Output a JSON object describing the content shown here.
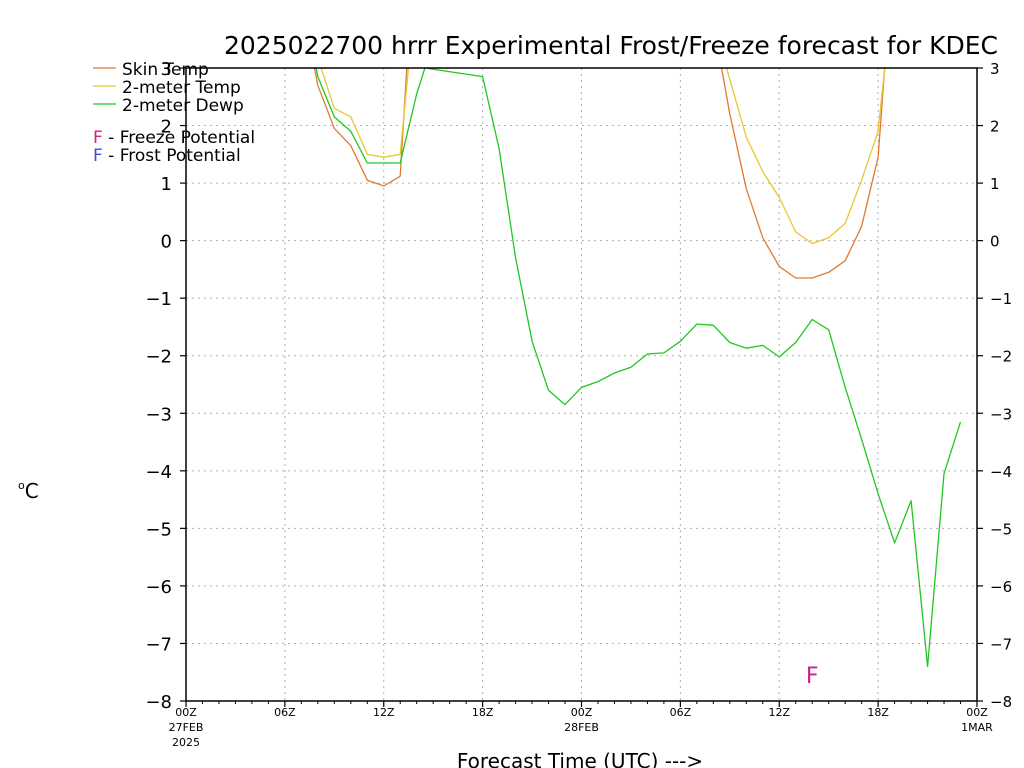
{
  "chart_data": {
    "type": "line",
    "title": "2025022700 hrrr Experimental Frost/Freeze forecast for KDEC",
    "xlabel": "Forecast Time (UTC) --->",
    "ylabel_unit_sup": "o",
    "ylabel_unit": "C",
    "ylim": [
      -8,
      3
    ],
    "xlim": [
      0,
      48
    ],
    "yticks": [
      -8,
      -7,
      -6,
      -5,
      -4,
      -3,
      -2,
      -1,
      0,
      1,
      2,
      3
    ],
    "grid": true,
    "legend_position": "top-left",
    "xticks": [
      {
        "h": 0,
        "label": "00Z",
        "sub1": "27FEB",
        "sub2": "2025"
      },
      {
        "h": 6,
        "label": "06Z",
        "sub1": "",
        "sub2": ""
      },
      {
        "h": 12,
        "label": "12Z",
        "sub1": "",
        "sub2": ""
      },
      {
        "h": 18,
        "label": "18Z",
        "sub1": "",
        "sub2": ""
      },
      {
        "h": 24,
        "label": "00Z",
        "sub1": "28FEB",
        "sub2": ""
      },
      {
        "h": 30,
        "label": "06Z",
        "sub1": "",
        "sub2": ""
      },
      {
        "h": 36,
        "label": "12Z",
        "sub1": "",
        "sub2": ""
      },
      {
        "h": 42,
        "label": "18Z",
        "sub1": "",
        "sub2": ""
      },
      {
        "h": 48,
        "label": "00Z",
        "sub1": "1MAR",
        "sub2": ""
      }
    ],
    "series": [
      {
        "name": "Skin Temp",
        "color": "#e07a30",
        "segments": [
          [
            [
              7.8,
              3.0
            ],
            [
              8,
              2.7
            ],
            [
              9,
              1.95
            ],
            [
              10,
              1.65
            ],
            [
              11,
              1.05
            ],
            [
              12,
              0.95
            ],
            [
              13,
              1.12
            ],
            [
              13.4,
              3.0
            ]
          ],
          [
            [
              32.5,
              3.0
            ],
            [
              33,
              2.2
            ],
            [
              34,
              0.9
            ],
            [
              35,
              0.05
            ],
            [
              36,
              -0.45
            ],
            [
              37,
              -0.65
            ],
            [
              38,
              -0.65
            ],
            [
              39,
              -0.55
            ],
            [
              40,
              -0.35
            ],
            [
              41,
              0.25
            ],
            [
              42,
              1.45
            ],
            [
              42.4,
              3.0
            ]
          ]
        ]
      },
      {
        "name": "2-meter Temp",
        "color": "#e8c830",
        "segments": [
          [
            [
              8.2,
              3.0
            ],
            [
              9,
              2.3
            ],
            [
              10,
              2.15
            ],
            [
              11,
              1.5
            ],
            [
              12,
              1.45
            ],
            [
              13,
              1.5
            ],
            [
              13.5,
              3.0
            ]
          ],
          [
            [
              32.8,
              3.0
            ],
            [
              34,
              1.8
            ],
            [
              35,
              1.2
            ],
            [
              36,
              0.75
            ],
            [
              37,
              0.15
            ],
            [
              38,
              -0.05
            ],
            [
              39,
              0.05
            ],
            [
              40,
              0.3
            ],
            [
              41,
              1.05
            ],
            [
              42,
              1.9
            ],
            [
              42.4,
              3.0
            ]
          ]
        ]
      },
      {
        "name": "2-meter Dewp",
        "color": "#20c820",
        "segments": [
          [
            [
              7.9,
              3.0
            ],
            [
              8,
              2.85
            ],
            [
              9,
              2.15
            ],
            [
              10,
              1.9
            ],
            [
              11,
              1.35
            ],
            [
              12,
              1.35
            ],
            [
              13,
              1.35
            ],
            [
              14,
              2.55
            ],
            [
              14.5,
              3.0
            ],
            [
              18,
              2.85
            ],
            [
              19,
              1.6
            ],
            [
              20,
              -0.3
            ],
            [
              21,
              -1.75
            ],
            [
              22,
              -2.6
            ],
            [
              23,
              -2.85
            ],
            [
              24,
              -2.55
            ],
            [
              25,
              -2.45
            ],
            [
              26,
              -2.3
            ],
            [
              27,
              -2.2
            ],
            [
              28,
              -1.97
            ],
            [
              29,
              -1.95
            ],
            [
              30,
              -1.75
            ],
            [
              31,
              -1.45
            ],
            [
              32,
              -1.47
            ],
            [
              33,
              -1.77
            ],
            [
              34,
              -1.87
            ],
            [
              35,
              -1.82
            ],
            [
              36,
              -2.02
            ],
            [
              37,
              -1.77
            ],
            [
              38,
              -1.37
            ],
            [
              39,
              -1.55
            ],
            [
              40,
              -2.55
            ],
            [
              41,
              -3.45
            ],
            [
              42,
              -4.4
            ],
            [
              43,
              -5.25
            ],
            [
              44,
              -4.52
            ],
            [
              45,
              -7.4
            ],
            [
              46,
              -4.05
            ],
            [
              47,
              -3.15
            ]
          ]
        ]
      }
    ],
    "potential_legend": [
      {
        "letter": "F",
        "color": "#d0208a",
        "text": " - Freeze Potential"
      },
      {
        "letter": "F",
        "color": "#3a50e0",
        "text": " - Frost Potential"
      }
    ],
    "markers": [
      {
        "x": 38,
        "y": -7.55,
        "letter": "F",
        "color": "#d0208a"
      }
    ]
  }
}
